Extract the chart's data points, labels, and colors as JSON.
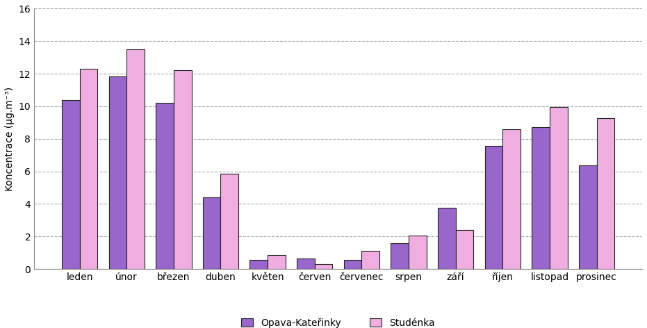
{
  "categories": [
    "leden",
    "únor",
    "březen",
    "duben",
    "květen",
    "červen",
    "červenec",
    "srpen",
    "září",
    "říjen",
    "listopad",
    "prosinec"
  ],
  "opava": [
    10.4,
    11.85,
    10.2,
    4.4,
    0.55,
    0.65,
    0.55,
    1.6,
    3.75,
    7.55,
    8.7,
    6.35
  ],
  "studenka": [
    12.3,
    13.5,
    12.2,
    5.85,
    0.85,
    0.3,
    1.1,
    2.05,
    2.4,
    8.6,
    9.95,
    9.25
  ],
  "color_opava": "#9966cc",
  "color_studenka": "#f0aee0",
  "ylabel": "Koncentrace (µg.m⁻³)",
  "ylim": [
    0,
    16
  ],
  "yticks": [
    0,
    2,
    4,
    6,
    8,
    10,
    12,
    14,
    16
  ],
  "legend_opava": "Opava-Kateřinky",
  "legend_studenka": "Studénka",
  "bar_width": 0.38,
  "tick_fontsize": 10,
  "legend_fontsize": 10,
  "ylabel_fontsize": 10,
  "grid_color": "#aaaaaa",
  "grid_linestyle": "--",
  "edge_color": "#222222"
}
